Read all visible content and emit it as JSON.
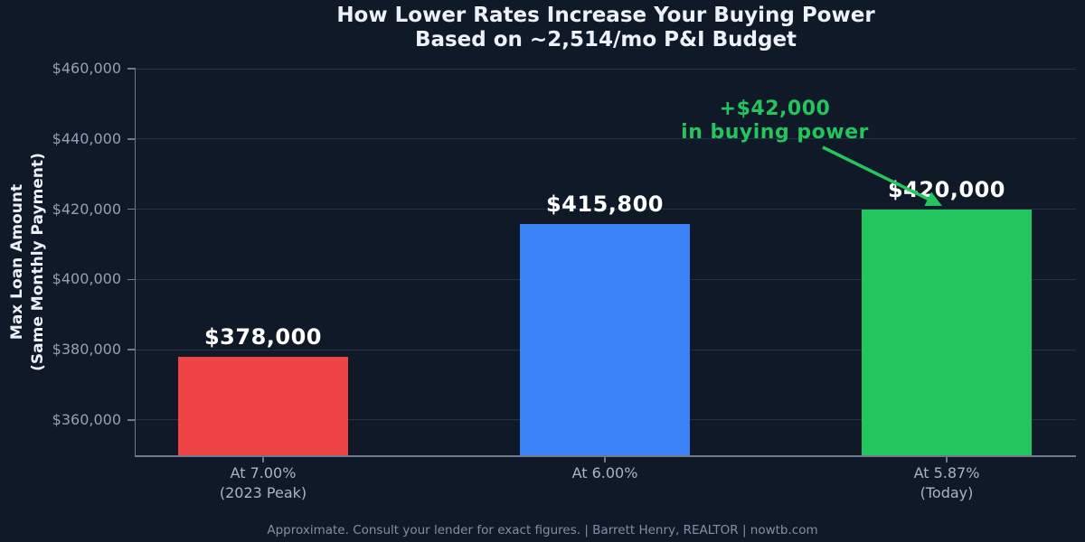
{
  "chart_data": {
    "type": "bar",
    "title_lines": [
      "How Lower Rates Increase Your Buying Power",
      "Based on ~2,514/mo P&I Budget"
    ],
    "ylabel_lines": [
      "Max Loan Amount",
      "(Same Monthly Payment)"
    ],
    "categories": [
      "At 7.00% (2023 Peak)",
      "At 6.00%",
      "At 5.87% (Today)"
    ],
    "values": [
      378000,
      415800,
      420000
    ],
    "bars": [
      {
        "category_lines": [
          "At 7.00%",
          "(2023 Peak)"
        ],
        "value": 378000,
        "value_label": "$378,000",
        "color": "#ef4444"
      },
      {
        "category_lines": [
          "At 6.00%"
        ],
        "value": 415800,
        "value_label": "$415,800",
        "color": "#3b82f6"
      },
      {
        "category_lines": [
          "At 5.87%",
          "(Today)"
        ],
        "value": 420000,
        "value_label": "$420,000",
        "color": "#22c55e"
      }
    ],
    "yticks": [
      {
        "value": 360000,
        "label": "$360,000"
      },
      {
        "value": 380000,
        "label": "$380,000"
      },
      {
        "value": 400000,
        "label": "$400,000"
      },
      {
        "value": 420000,
        "label": "$420,000"
      },
      {
        "value": 440000,
        "label": "$440,000"
      },
      {
        "value": 460000,
        "label": "$460,000"
      }
    ],
    "ylim": [
      349700,
      460300
    ],
    "grid": true,
    "legend": false,
    "annotation": {
      "lines": [
        "+$42,000",
        "in buying power"
      ],
      "color": "#22c55e"
    },
    "colors": {
      "background": "#101927",
      "title": "#eef2f8",
      "value_label": "#ffffff",
      "y_tick_label": "#94a1b5",
      "x_tick_label": "#a9b5c7",
      "axis": "#6e7a8f",
      "red_bar": "#ef4444",
      "blue_bar": "#3b82f6",
      "green_bar": "#22c55e"
    }
  },
  "footer": {
    "text": "Approximate. Consult your lender for exact figures.  |  Barrett Henry, REALTOR  |  nowtb.com"
  }
}
